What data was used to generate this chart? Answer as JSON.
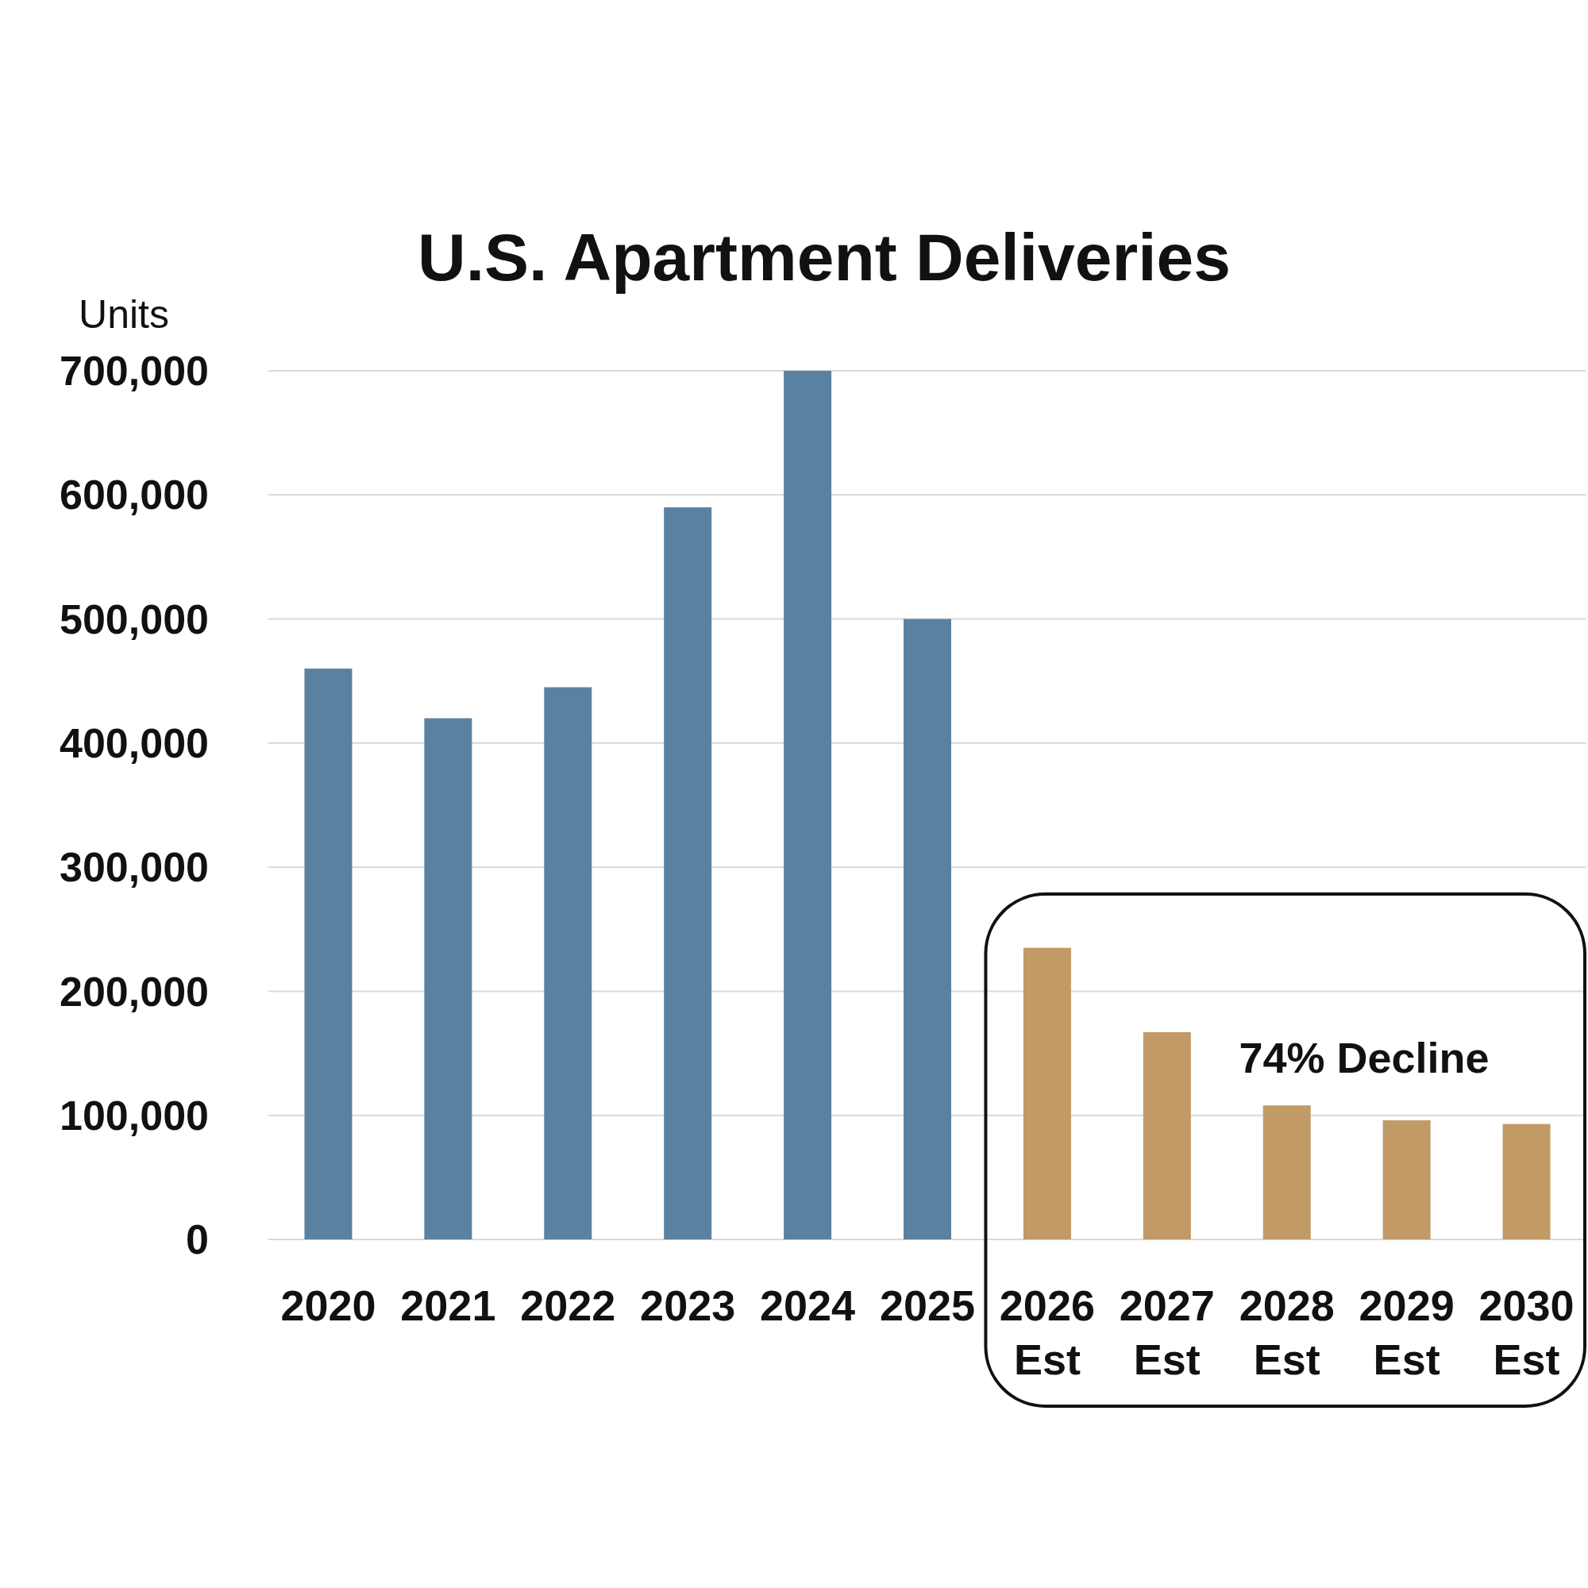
{
  "chart_data": {
    "type": "bar",
    "title": "U.S. Apartment Deliveries",
    "ylabel": "Units",
    "categories": [
      "2020",
      "2021",
      "2022",
      "2023",
      "2024",
      "2025",
      "2026\nEst",
      "2027\nEst",
      "2028\nEst",
      "2029\nEst",
      "2030\nEst"
    ],
    "values": [
      460000,
      420000,
      445000,
      590000,
      700000,
      500000,
      235000,
      167000,
      108000,
      96000,
      93000
    ],
    "colors": [
      "#5b81a1",
      "#5b81a1",
      "#5b81a1",
      "#5b81a1",
      "#5b81a1",
      "#5b81a1",
      "#c19a66",
      "#c19a66",
      "#c19a66",
      "#c19a66",
      "#c19a66"
    ],
    "ylim": [
      0,
      700000
    ],
    "yticks": [
      0,
      {
        "value": 100000,
        "label": "100,000"
      },
      {
        "value": 200000,
        "label": "200,000"
      },
      {
        "value": 300000,
        "label": "300,000"
      },
      {
        "value": 400000,
        "label": "400,000"
      },
      {
        "value": 500000,
        "label": "500,000"
      },
      {
        "value": 600000,
        "label": "600,000"
      },
      {
        "value": 700000,
        "label": "700,000"
      }
    ],
    "grid": "y",
    "annotations": [
      "74% Decline"
    ]
  }
}
